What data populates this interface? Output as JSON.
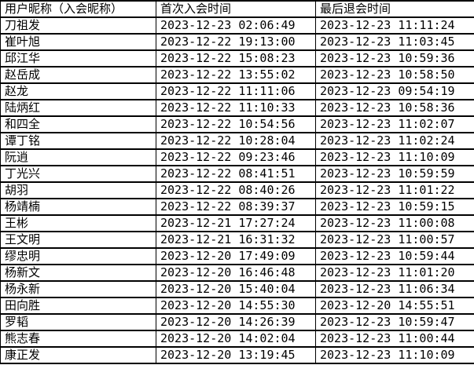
{
  "colors": {
    "border": "#000000",
    "text": "#000000",
    "background": "#ffffff"
  },
  "chart_data": {
    "type": "table",
    "headers": [
      "用户昵称（入会昵称）",
      "首次入会时间",
      "最后退会时间"
    ],
    "rows": [
      [
        "刀祖发",
        "2023-12-23 02:06:49",
        "2023-12-23 11:11:24"
      ],
      [
        "崔叶旭",
        "2023-12-22 19:13:00",
        "2023-12-23 11:03:45"
      ],
      [
        "邱江华",
        "2023-12-22 15:08:23",
        "2023-12-23 10:59:36"
      ],
      [
        "赵岳成",
        "2023-12-22 13:55:02",
        "2023-12-23 10:58:50"
      ],
      [
        "赵龙",
        "2023-12-22 11:11:06",
        "2023-12-23 09:54:19"
      ],
      [
        "陆炳红",
        "2023-12-22 11:10:33",
        "2023-12-23 10:58:36"
      ],
      [
        "和四全",
        "2023-12-22 10:54:56",
        "2023-12-23 11:02:07"
      ],
      [
        "谭丁铭",
        "2023-12-22 10:28:04",
        "2023-12-23 11:02:24"
      ],
      [
        "阮逍",
        "2023-12-22 09:23:46",
        "2023-12-23 11:10:09"
      ],
      [
        "丁光兴",
        "2023-12-22 08:41:51",
        "2023-12-23 10:59:59"
      ],
      [
        "胡羽",
        "2023-12-22 08:40:26",
        "2023-12-23 11:01:22"
      ],
      [
        "杨靖楠",
        "2023-12-22 08:39:37",
        "2023-12-23 10:59:15"
      ],
      [
        "王彬",
        "2023-12-21 17:27:24",
        "2023-12-23 11:00:08"
      ],
      [
        "王文明",
        "2023-12-21 16:31:32",
        "2023-12-23 11:00:57"
      ],
      [
        "缪忠明",
        "2023-12-20 17:49:09",
        "2023-12-23 10:59:44"
      ],
      [
        "杨新文",
        "2023-12-20 16:46:48",
        "2023-12-23 11:01:20"
      ],
      [
        "杨永新",
        "2023-12-20 15:40:04",
        "2023-12-23 11:06:34"
      ],
      [
        "田向胜",
        "2023-12-20 14:55:30",
        "2023-12-20 14:55:51"
      ],
      [
        "罗韬",
        "2023-12-20 14:26:39",
        "2023-12-23 10:59:47"
      ],
      [
        "熊志春",
        "2023-12-20 14:02:04",
        "2023-12-23 11:00:44"
      ],
      [
        "康正发",
        "2023-12-20 13:19:45",
        "2023-12-23 11:10:09"
      ]
    ]
  }
}
